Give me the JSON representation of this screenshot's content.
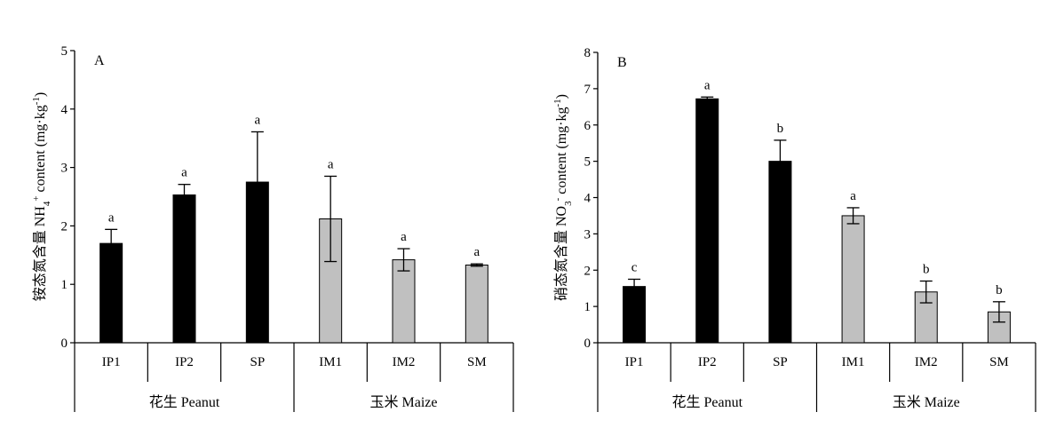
{
  "chart_data": [
    {
      "type": "bar",
      "panel_label": "A",
      "ylabel": "铵态氮含量 NH₄⁺ content (mg·kg⁻¹)",
      "ylabel_parts": {
        "prefix": "铵态氮含量 NH",
        "sub": "4",
        "sup": "+",
        "middle": " content (mg·kg",
        "unit_sup": "-1",
        "suffix": ")"
      },
      "ylim": [
        0,
        5
      ],
      "yticks": [
        "0",
        "1",
        "2",
        "3",
        "4",
        "5"
      ],
      "categories": [
        "IP1",
        "IP2",
        "SP",
        "IM1",
        "IM2",
        "SM"
      ],
      "values": [
        1.7,
        2.53,
        2.75,
        2.12,
        1.42,
        1.33
      ],
      "errors": [
        0.24,
        0.18,
        0.86,
        0.73,
        0.19,
        0.02
      ],
      "significance": [
        "a",
        "a",
        "a",
        "a",
        "a",
        "a"
      ],
      "bar_colors": [
        "#000000",
        "#000000",
        "#000000",
        "#c0c0c0",
        "#c0c0c0",
        "#c0c0c0"
      ],
      "groups": [
        {
          "label": "花生 Peanut",
          "count": 3
        },
        {
          "label": "玉米 Maize",
          "count": 3
        }
      ],
      "grid": false
    },
    {
      "type": "bar",
      "panel_label": "B",
      "ylabel": "硝态氮含量 NO₃⁻ content (mg·kg⁻¹)",
      "ylabel_parts": {
        "prefix": "硝态氮含量 NO",
        "sub": "3",
        "sup": "-",
        "middle": " content (mg·kg",
        "unit_sup": "-1",
        "suffix": ")"
      },
      "ylim": [
        0,
        8
      ],
      "yticks": [
        "0",
        "1",
        "2",
        "3",
        "4",
        "5",
        "6",
        "7",
        "8"
      ],
      "categories": [
        "IP1",
        "IP2",
        "SP",
        "IM1",
        "IM2",
        "SM"
      ],
      "values": [
        1.55,
        6.72,
        5.0,
        3.5,
        1.4,
        0.85
      ],
      "errors": [
        0.2,
        0.05,
        0.58,
        0.22,
        0.3,
        0.28
      ],
      "significance": [
        "c",
        "a",
        "b",
        "a",
        "b",
        "b"
      ],
      "bar_colors": [
        "#000000",
        "#000000",
        "#000000",
        "#c0c0c0",
        "#c0c0c0",
        "#c0c0c0"
      ],
      "groups": [
        {
          "label": "花生 Peanut",
          "count": 3
        },
        {
          "label": "玉米 Maize",
          "count": 3
        }
      ],
      "grid": false
    }
  ]
}
